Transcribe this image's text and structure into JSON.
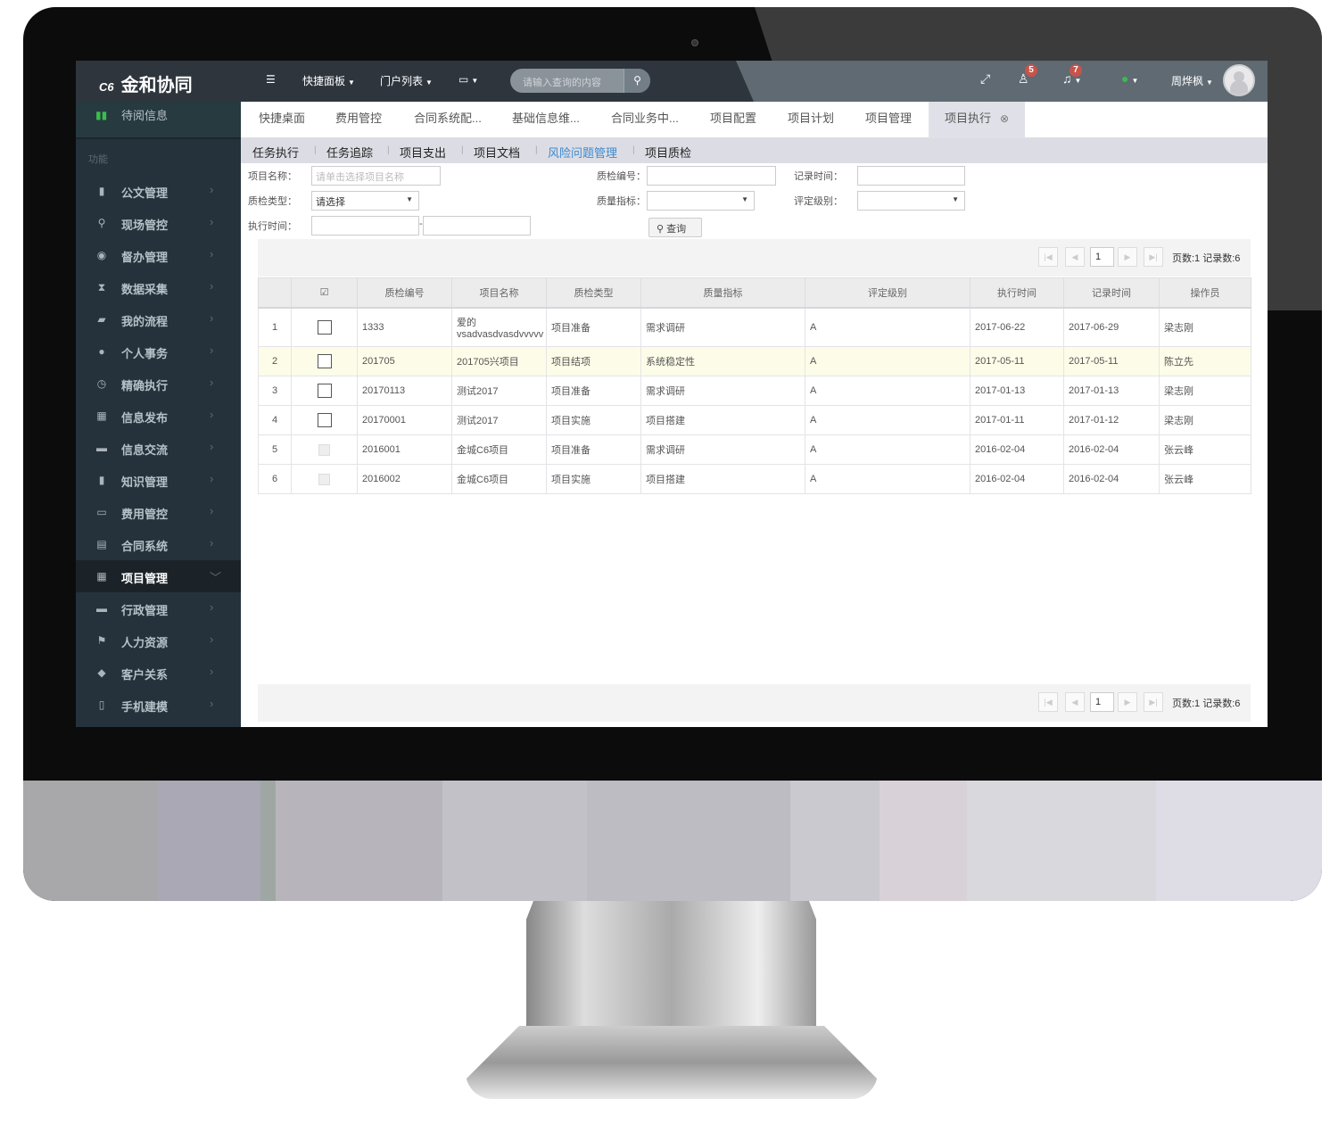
{
  "app": {
    "logo_mark": "C6",
    "title": "金和协同"
  },
  "topnav": {
    "menu_icon": "list-icon",
    "items": [
      {
        "label": "快捷面板"
      },
      {
        "label": "门户列表"
      },
      {
        "label": "",
        "icon": "monitor-icon"
      }
    ],
    "search_placeholder": "请输入查询的内容",
    "search_icon": "search-icon",
    "fullscreen_icon": "expand-icon",
    "users_badge": "5",
    "bell_badge": "7",
    "status_color": "#3dbb4f",
    "user_name": "周烨枫"
  },
  "sidebar": {
    "top_item": "待阅信息",
    "section": "功能",
    "items": [
      {
        "label": "公文管理",
        "icon": "book-icon"
      },
      {
        "label": "现场管控",
        "icon": "map-marker-icon"
      },
      {
        "label": "督办管理",
        "icon": "eye-icon"
      },
      {
        "label": "数据采集",
        "icon": "hourglass-icon"
      },
      {
        "label": "我的流程",
        "icon": "folder-open-icon"
      },
      {
        "label": "个人事务",
        "icon": "user-icon"
      },
      {
        "label": "精确执行",
        "icon": "clock-icon"
      },
      {
        "label": "信息发布",
        "icon": "grid-icon"
      },
      {
        "label": "信息交流",
        "icon": "comment-icon"
      },
      {
        "label": "知识管理",
        "icon": "bookmark-icon"
      },
      {
        "label": "费用管控",
        "icon": "credit-card-icon"
      },
      {
        "label": "合同系统",
        "icon": "list-alt-icon"
      },
      {
        "label": "项目管理",
        "icon": "calendar-icon",
        "active": true
      },
      {
        "label": "行政管理",
        "icon": "briefcase-icon"
      },
      {
        "label": "人力资源",
        "icon": "flag-icon"
      },
      {
        "label": "客户关系",
        "icon": "tags-icon"
      },
      {
        "label": "手机建模",
        "icon": "mobile-icon"
      }
    ]
  },
  "tabs": [
    {
      "label": "快捷桌面"
    },
    {
      "label": "费用管控"
    },
    {
      "label": "合同系统配..."
    },
    {
      "label": "基础信息维..."
    },
    {
      "label": "合同业务中..."
    },
    {
      "label": "项目配置"
    },
    {
      "label": "项目计划"
    },
    {
      "label": "项目管理"
    },
    {
      "label": "项目执行",
      "active": true
    }
  ],
  "subtabs": [
    {
      "label": "任务执行"
    },
    {
      "label": "任务追踪"
    },
    {
      "label": "项目支出"
    },
    {
      "label": "项目文档"
    },
    {
      "label": "风险问题管理",
      "highlight": true
    },
    {
      "label": "项目质检"
    }
  ],
  "filters": {
    "project_name_label": "项目名称：",
    "project_name_placeholder": "请单击选择项目名称",
    "qc_no_label": "质检编号：",
    "record_time_label": "记录时间：",
    "qc_type_label": "质检类型：",
    "qc_type_value": "请选择",
    "quality_index_label": "质量指标：",
    "rating_label": "评定级别：",
    "exec_time_label": "执行时间：",
    "range_sep": "-",
    "query_button": "查询"
  },
  "pagination": {
    "page": "1",
    "info": "页数:1 记录数:6"
  },
  "table": {
    "columns": [
      "",
      "",
      "质检编号",
      "项目名称",
      "质检类型",
      "质量指标",
      "评定级别",
      "执行时间",
      "记录时间",
      "操作员"
    ],
    "rows": [
      {
        "n": "1",
        "no": "1333",
        "name": "爱的vsadvasdvasdvvvvv",
        "type": "项目准备",
        "index": "需求调研",
        "rating": "A",
        "exec": "2017-06-22",
        "rec": "2017-06-29",
        "op": "梁志刚",
        "enabled": true
      },
      {
        "n": "2",
        "no": "201705",
        "name": "201705兴项目",
        "type": "项目结项",
        "index": "系统稳定性",
        "rating": "A",
        "exec": "2017-05-11",
        "rec": "2017-05-11",
        "op": "陈立先",
        "enabled": true,
        "highlighted": true
      },
      {
        "n": "3",
        "no": "20170113",
        "name": "测试2017",
        "type": "项目准备",
        "index": "需求调研",
        "rating": "A",
        "exec": "2017-01-13",
        "rec": "2017-01-13",
        "op": "梁志刚",
        "enabled": true
      },
      {
        "n": "4",
        "no": "20170001",
        "name": "测试2017",
        "type": "项目实施",
        "index": "项目搭建",
        "rating": "A",
        "exec": "2017-01-11",
        "rec": "2017-01-12",
        "op": "梁志刚",
        "enabled": true
      },
      {
        "n": "5",
        "no": "2016001",
        "name": "金城C6项目",
        "type": "项目准备",
        "index": "需求调研",
        "rating": "A",
        "exec": "2016-02-04",
        "rec": "2016-02-04",
        "op": "张云峰",
        "enabled": false
      },
      {
        "n": "6",
        "no": "2016002",
        "name": "金城C6项目",
        "type": "项目实施",
        "index": "项目搭建",
        "rating": "A",
        "exec": "2016-02-04",
        "rec": "2016-02-04",
        "op": "张云峰",
        "enabled": false
      }
    ]
  }
}
